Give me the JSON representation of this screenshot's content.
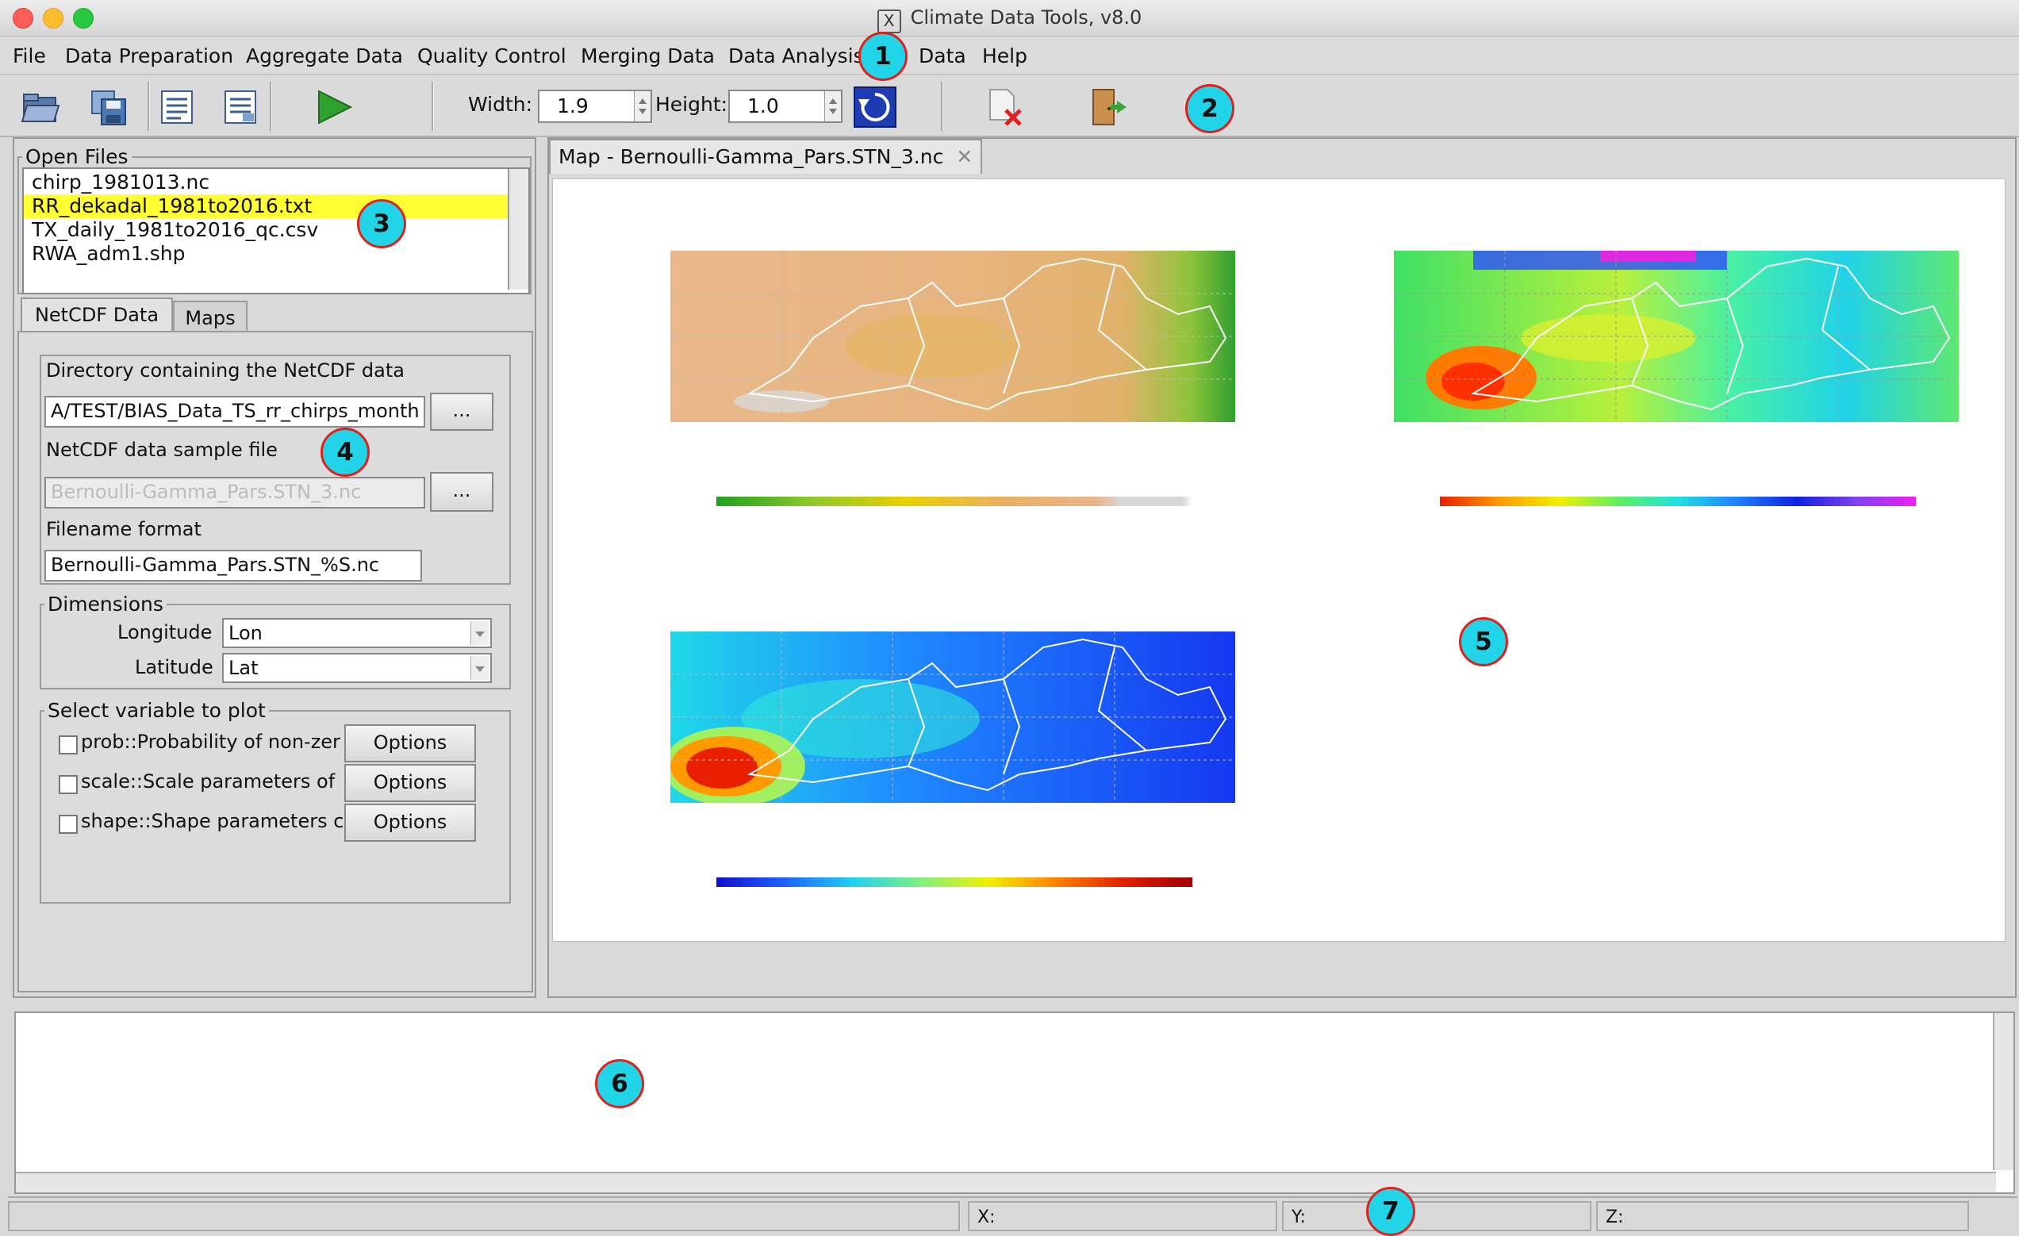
{
  "window": {
    "title": "Climate Data Tools, v8.0"
  },
  "menubar": {
    "items": [
      "File",
      "Data Preparation",
      "Aggregate Data",
      "Quality Control",
      "Merging Data",
      "Data Analysis",
      "Data",
      "Help"
    ]
  },
  "toolbar": {
    "width_label": "Width:",
    "width_value": "1.9",
    "height_label": "Height:",
    "height_value": "1.0"
  },
  "open_files": {
    "legend": "Open Files",
    "files": [
      "chirp_1981013.nc",
      "RR_dekadal_1981to2016.txt",
      "TX_daily_1981to2016_qc.csv",
      "RWA_adm1.shp"
    ],
    "selected_index": 1
  },
  "tabs": {
    "netcdf": "NetCDF Data",
    "maps": "Maps"
  },
  "netcdf_panel": {
    "dir_label": "Directory containing the NetCDF data",
    "dir_value": "A/TEST/BIAS_Data_TS_rr_chirps_month",
    "browse": "...",
    "sample_label": "NetCDF data sample file",
    "sample_value": "Bernoulli-Gamma_Pars.STN_3.nc",
    "format_label": "Filename format",
    "format_value": "Bernoulli-Gamma_Pars.STN_%S.nc"
  },
  "dimensions": {
    "legend": "Dimensions",
    "lon_label": "Longitude",
    "lon_value": "Lon",
    "lat_label": "Latitude",
    "lat_value": "Lat"
  },
  "variables": {
    "legend": "Select variable to plot",
    "items": [
      {
        "label": "prob::Probability of non-zer",
        "button": "Options"
      },
      {
        "label": "scale::Scale parameters of",
        "button": "Options"
      },
      {
        "label": "shape::Shape parameters c",
        "button": "Options"
      }
    ]
  },
  "map_tab": {
    "label": "Map - Bernoulli-Gamma_Pars.STN_3.nc"
  },
  "statusbar": {
    "x": "X:",
    "y": "Y:",
    "z": "Z:"
  },
  "callouts": [
    "1",
    "2",
    "3",
    "4",
    "5",
    "6",
    "7"
  ],
  "colors": {
    "selection": "#ffff33",
    "accent": "#1d3bb3"
  }
}
